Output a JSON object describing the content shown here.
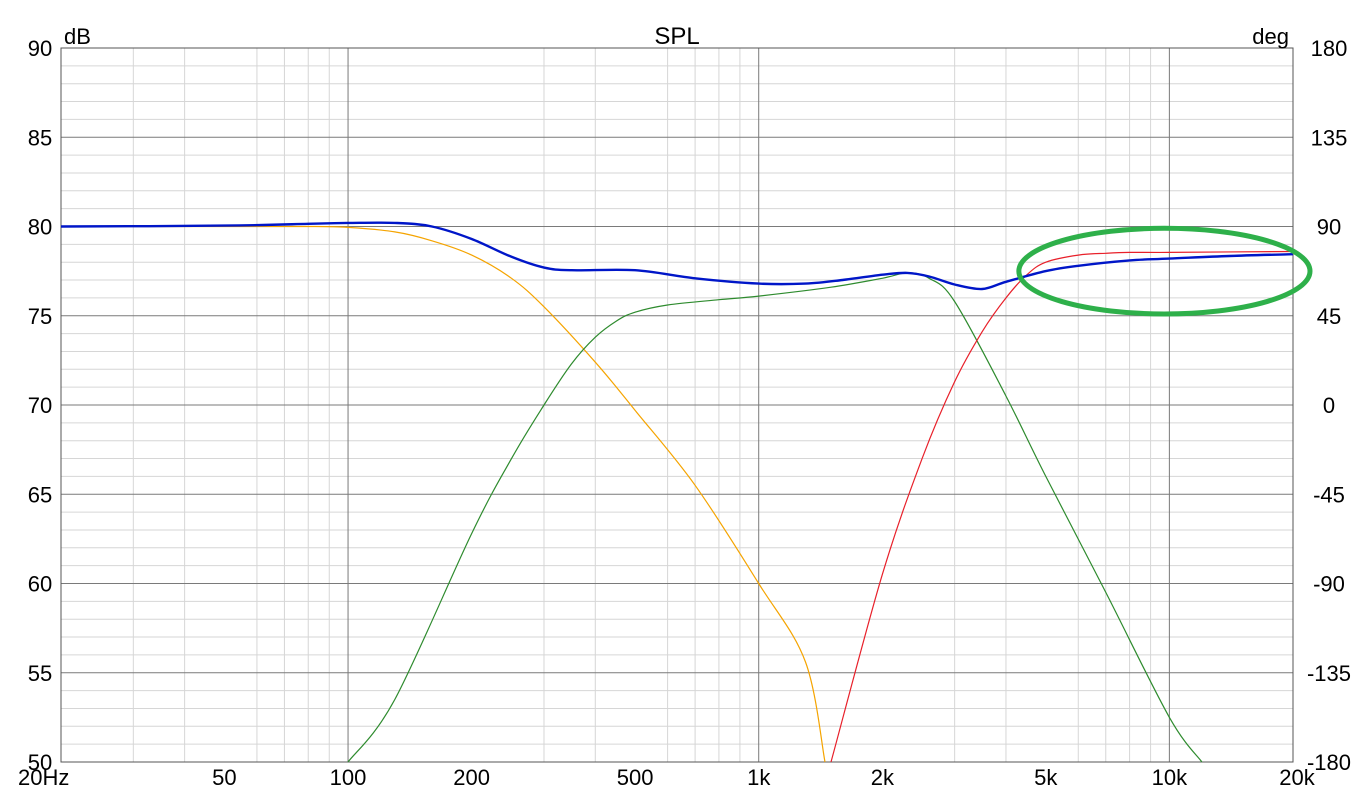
{
  "chart_data": {
    "type": "line",
    "title": "SPL",
    "ylabel_left": "dB",
    "ylabel_right": "deg",
    "x_scale": "log",
    "xlim": [
      20,
      20000
    ],
    "ylim": [
      50,
      90
    ],
    "y2lim": [
      -180,
      180
    ],
    "grid": true,
    "x_ticks": [
      {
        "value": 20,
        "label": "20Hz"
      },
      {
        "value": 50,
        "label": "50"
      },
      {
        "value": 100,
        "label": "100"
      },
      {
        "value": 200,
        "label": "200"
      },
      {
        "value": 500,
        "label": "500"
      },
      {
        "value": 1000,
        "label": "1k"
      },
      {
        "value": 2000,
        "label": "2k"
      },
      {
        "value": 5000,
        "label": "5k"
      },
      {
        "value": 10000,
        "label": "10k"
      },
      {
        "value": 20000,
        "label": "20k"
      }
    ],
    "y_ticks_left": [
      "50",
      "55",
      "60",
      "65",
      "70",
      "75",
      "80",
      "85",
      "90"
    ],
    "y_ticks_right": [
      "-180",
      "-135",
      "-90",
      "-45",
      "0",
      "45",
      "90",
      "135",
      "180"
    ],
    "series": [
      {
        "color": "#f5a400",
        "x": [
          20,
          50,
          80,
          100,
          130,
          160,
          200,
          250,
          300,
          400,
          500,
          700,
          1000,
          1300,
          1450
        ],
        "y": [
          80.0,
          80.0,
          80.0,
          79.95,
          79.7,
          79.2,
          78.4,
          77.1,
          75.5,
          72.4,
          69.7,
          65.5,
          60.0,
          55.6,
          50.0
        ]
      },
      {
        "color": "#2e8b2e",
        "x": [
          100,
          130,
          200,
          250,
          300,
          350,
          400,
          450,
          500,
          600,
          800,
          1000,
          1500,
          2000,
          2300,
          2600,
          3000,
          4000,
          5000,
          7000,
          10000,
          12000
        ],
        "y": [
          50.0,
          53.5,
          62.8,
          67.0,
          70.0,
          72.3,
          73.8,
          74.7,
          75.2,
          75.6,
          75.9,
          76.1,
          76.6,
          77.1,
          77.4,
          77.1,
          75.8,
          70.5,
          66.0,
          59.5,
          52.5,
          50.0
        ]
      },
      {
        "color": "#e8202a",
        "x": [
          1500,
          2000,
          2500,
          3000,
          3500,
          4000,
          4500,
          5000,
          6000,
          7000,
          8000,
          10000,
          20000
        ],
        "y": [
          50.0,
          60.5,
          67.0,
          71.3,
          74.1,
          76.0,
          77.3,
          78.0,
          78.4,
          78.5,
          78.55,
          78.55,
          78.6
        ]
      },
      {
        "color": "#0016c8",
        "x": [
          20,
          50,
          80,
          100,
          130,
          160,
          200,
          250,
          300,
          350,
          500,
          700,
          1000,
          1300,
          1600,
          2000,
          2300,
          2600,
          3000,
          3500,
          4000,
          5000,
          6000,
          8000,
          10000,
          14000,
          20000
        ],
        "y": [
          80.0,
          80.05,
          80.15,
          80.2,
          80.2,
          80.0,
          79.3,
          78.3,
          77.7,
          77.55,
          77.55,
          77.1,
          76.8,
          76.8,
          77.0,
          77.3,
          77.4,
          77.2,
          76.75,
          76.5,
          76.9,
          77.5,
          77.8,
          78.1,
          78.2,
          78.35,
          78.45
        ]
      }
    ],
    "annotations": [
      {
        "type": "ellipse",
        "color": "#2eb04a",
        "x_range": [
          4300,
          22000
        ],
        "y_range": [
          75.1,
          79.9
        ]
      }
    ]
  }
}
